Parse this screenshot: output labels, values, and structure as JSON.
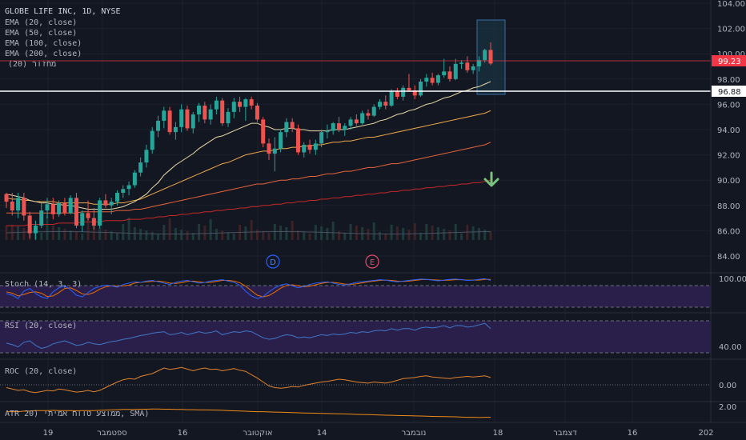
{
  "colors": {
    "bg": "#131722",
    "grid": "#1f2330",
    "up": "#26a69a",
    "down": "#ef5350",
    "text": "#b2b5be",
    "ema20": "#e8d9a6",
    "ema50": "#f0a94c",
    "ema100": "#e8643c",
    "ema200": "#c62828",
    "volume_ma": "#4a5262",
    "arrow": "#7bc47f",
    "stoch_k": "#2962ff",
    "stoch_d": "#ef6c00",
    "stoch_band": "#2a1f4a",
    "rsi": "#3f78c9",
    "rsi_band": "#2a1f4a",
    "roc": "#e0822e",
    "atr": "#ef8a17",
    "price_tag": "#f23645",
    "level_tag": "#ffffff"
  },
  "header": {
    "symbol_line": "GLOBE LIFE INC, 1D, NYSE",
    "indicators": [
      "EMA (20, close)",
      "EMA (50, close)",
      "EMA (100, close)",
      "EMA (200, close)",
      "מחזור (20)"
    ]
  },
  "price_axis": {
    "ticks": [
      "104.00",
      "102.00",
      "100.00",
      "98.00",
      "96.00",
      "94.00",
      "92.00",
      "90.00",
      "88.00",
      "86.00",
      "84.00"
    ],
    "current_price": "99.23",
    "support_level": "96.88"
  },
  "event_markers": [
    {
      "label": "D"
    },
    {
      "label": "E"
    }
  ],
  "time_axis": {
    "labels": [
      "19",
      "ספטמבר",
      "16",
      "אוקטובר",
      "14",
      "נובמבר",
      "18",
      "דצמבר",
      "16",
      "202"
    ]
  },
  "panes": {
    "stoch": {
      "title": "Stoch (14, 3, 3)",
      "tick": "100.00"
    },
    "rsi": {
      "title": "RSI (20, close)",
      "tick": "40.00"
    },
    "roc": {
      "title": "ROC (20, close)",
      "tick": "0.00"
    },
    "atr": {
      "title": "ATR 20) ממוצע טווח אמיתי, SMA)",
      "tick": "2.00"
    }
  },
  "chart_data": {
    "type": "candlestick",
    "title": "GLOBE LIFE INC, 1D, NYSE",
    "ylim": [
      83,
      105
    ],
    "candles": [
      [
        88.9,
        89.0,
        87.8,
        88.3
      ],
      [
        88.3,
        89.0,
        87.2,
        87.6
      ],
      [
        87.6,
        89.0,
        87.0,
        88.6
      ],
      [
        88.6,
        89.0,
        86.8,
        87.2
      ],
      [
        87.2,
        87.5,
        85.4,
        85.8
      ],
      [
        85.8,
        86.8,
        85.3,
        86.4
      ],
      [
        86.4,
        88.2,
        86.2,
        87.6
      ],
      [
        87.6,
        88.6,
        87.0,
        88.1
      ],
      [
        88.1,
        88.6,
        86.9,
        87.3
      ],
      [
        87.3,
        88.4,
        87.1,
        88.2
      ],
      [
        88.2,
        88.6,
        87.2,
        87.4
      ],
      [
        87.4,
        88.8,
        87.3,
        88.6
      ],
      [
        88.6,
        89.0,
        86.2,
        86.4
      ],
      [
        86.4,
        87.6,
        85.9,
        87.4
      ],
      [
        87.4,
        88.4,
        86.8,
        87.0
      ],
      [
        87.0,
        87.8,
        86.1,
        86.4
      ],
      [
        86.4,
        88.6,
        86.2,
        88.4
      ],
      [
        88.4,
        88.9,
        87.8,
        88.0
      ],
      [
        88.0,
        88.6,
        87.3,
        88.3
      ],
      [
        88.3,
        89.2,
        88.0,
        89.0
      ],
      [
        89.0,
        89.6,
        88.6,
        89.3
      ],
      [
        89.3,
        89.9,
        88.8,
        89.6
      ],
      [
        89.6,
        90.8,
        89.4,
        90.6
      ],
      [
        90.6,
        91.8,
        90.3,
        91.4
      ],
      [
        91.4,
        92.8,
        91.0,
        92.4
      ],
      [
        92.4,
        94.2,
        92.1,
        93.9
      ],
      [
        93.9,
        95.1,
        93.4,
        94.7
      ],
      [
        94.7,
        95.8,
        94.1,
        95.5
      ],
      [
        95.5,
        95.8,
        93.6,
        93.8
      ],
      [
        93.8,
        94.6,
        93.2,
        94.2
      ],
      [
        94.2,
        96.0,
        93.8,
        95.6
      ],
      [
        95.6,
        95.9,
        93.9,
        94.1
      ],
      [
        94.1,
        95.4,
        93.7,
        95.2
      ],
      [
        95.2,
        96.1,
        94.6,
        95.9
      ],
      [
        95.9,
        96.2,
        94.5,
        94.8
      ],
      [
        94.8,
        96.0,
        94.4,
        95.6
      ],
      [
        95.6,
        96.6,
        95.2,
        96.3
      ],
      [
        96.3,
        96.5,
        94.3,
        94.5
      ],
      [
        94.5,
        95.7,
        94.2,
        95.4
      ],
      [
        95.4,
        96.5,
        94.9,
        96.2
      ],
      [
        96.2,
        96.6,
        95.4,
        95.8
      ],
      [
        95.8,
        96.5,
        94.7,
        96.4
      ],
      [
        96.4,
        96.6,
        95.6,
        95.9
      ],
      [
        95.9,
        96.1,
        94.6,
        94.8
      ],
      [
        94.8,
        95.0,
        92.6,
        92.9
      ],
      [
        92.9,
        93.3,
        91.6,
        92.1
      ],
      [
        92.1,
        93.4,
        90.7,
        92.5
      ],
      [
        92.5,
        94.0,
        92.2,
        93.8
      ],
      [
        93.8,
        94.9,
        93.4,
        94.6
      ],
      [
        94.6,
        94.9,
        93.8,
        94.1
      ],
      [
        94.1,
        94.4,
        92.0,
        92.2
      ],
      [
        92.2,
        93.0,
        91.8,
        92.8
      ],
      [
        92.8,
        93.2,
        92.1,
        92.4
      ],
      [
        92.4,
        93.2,
        92.0,
        92.9
      ],
      [
        92.9,
        94.0,
        92.6,
        93.8
      ],
      [
        93.8,
        94.4,
        93.3,
        93.9
      ],
      [
        93.9,
        94.6,
        93.6,
        94.5
      ],
      [
        94.5,
        95.0,
        93.8,
        94.0
      ],
      [
        94.0,
        94.5,
        93.5,
        94.3
      ],
      [
        94.3,
        95.0,
        94.0,
        94.8
      ],
      [
        94.8,
        95.2,
        94.3,
        94.5
      ],
      [
        94.5,
        95.5,
        94.4,
        95.3
      ],
      [
        95.3,
        95.6,
        94.8,
        95.1
      ],
      [
        95.1,
        96.0,
        95.0,
        95.8
      ],
      [
        95.8,
        96.4,
        95.6,
        96.2
      ],
      [
        96.2,
        96.7,
        95.6,
        95.9
      ],
      [
        95.9,
        97.2,
        95.8,
        97.0
      ],
      [
        97.0,
        97.3,
        96.4,
        96.6
      ],
      [
        96.6,
        97.5,
        96.3,
        97.3
      ],
      [
        97.3,
        98.4,
        97.0,
        97.1
      ],
      [
        97.1,
        97.5,
        96.4,
        96.7
      ],
      [
        96.7,
        98.0,
        96.6,
        97.8
      ],
      [
        97.8,
        98.4,
        97.4,
        98.1
      ],
      [
        98.1,
        98.5,
        97.5,
        97.7
      ],
      [
        97.7,
        98.4,
        97.5,
        98.3
      ],
      [
        98.3,
        99.6,
        98.1,
        98.6
      ],
      [
        98.6,
        99.0,
        97.8,
        98.0
      ],
      [
        98.0,
        99.6,
        97.9,
        99.2
      ],
      [
        99.2,
        99.5,
        98.8,
        99.3
      ],
      [
        99.3,
        99.8,
        98.5,
        98.7
      ],
      [
        98.7,
        99.2,
        98.4,
        99.0
      ],
      [
        99.0,
        99.8,
        98.6,
        99.5
      ],
      [
        99.5,
        100.4,
        99.3,
        100.3
      ],
      [
        100.3,
        100.9,
        99.1,
        99.23
      ]
    ],
    "ema20": [
      88.9,
      88.8,
      88.7,
      88.6,
      88.4,
      88.3,
      88.2,
      88.2,
      88.1,
      88.1,
      88.0,
      88.0,
      87.9,
      87.8,
      87.7,
      87.7,
      87.7,
      87.7,
      87.7,
      87.8,
      87.9,
      88.1,
      88.3,
      88.6,
      88.9,
      89.4,
      89.8,
      90.4,
      90.8,
      91.2,
      91.5,
      91.8,
      92.1,
      92.5,
      92.8,
      93.1,
      93.4,
      93.5,
      93.7,
      93.9,
      94.1,
      94.3,
      94.5,
      94.5,
      94.3,
      94.2,
      94.0,
      94.0,
      94.1,
      94.1,
      94.0,
      94.0,
      93.9,
      93.9,
      93.9,
      93.9,
      94.0,
      94.0,
      94.0,
      94.1,
      94.2,
      94.3,
      94.4,
      94.5,
      94.7,
      94.8,
      95.0,
      95.2,
      95.3,
      95.5,
      95.6,
      95.8,
      96.0,
      96.1,
      96.3,
      96.5,
      96.6,
      96.8,
      97.0,
      97.1,
      97.3,
      97.4,
      97.6,
      97.8
    ],
    "ema50": [
      88.6,
      88.5,
      88.5,
      88.4,
      88.4,
      88.3,
      88.3,
      88.3,
      88.3,
      88.2,
      88.2,
      88.2,
      88.2,
      88.2,
      88.2,
      88.1,
      88.1,
      88.1,
      88.1,
      88.2,
      88.2,
      88.3,
      88.4,
      88.5,
      88.7,
      88.9,
      89.1,
      89.3,
      89.5,
      89.7,
      89.9,
      90.1,
      90.3,
      90.5,
      90.7,
      90.9,
      91.1,
      91.3,
      91.4,
      91.6,
      91.8,
      92.0,
      92.1,
      92.2,
      92.3,
      92.3,
      92.4,
      92.5,
      92.5,
      92.6,
      92.6,
      92.7,
      92.7,
      92.8,
      92.8,
      92.9,
      93.0,
      93.0,
      93.1,
      93.1,
      93.2,
      93.3,
      93.4,
      93.4,
      93.5,
      93.6,
      93.7,
      93.8,
      93.9,
      94.0,
      94.1,
      94.2,
      94.3,
      94.4,
      94.5,
      94.6,
      94.7,
      94.8,
      94.9,
      95.0,
      95.1,
      95.2,
      95.3,
      95.5
    ],
    "ema100": [
      87.4,
      87.4,
      87.4,
      87.4,
      87.4,
      87.4,
      87.4,
      87.4,
      87.4,
      87.4,
      87.4,
      87.4,
      87.4,
      87.5,
      87.5,
      87.5,
      87.5,
      87.5,
      87.5,
      87.6,
      87.6,
      87.6,
      87.7,
      87.7,
      87.8,
      87.9,
      88.0,
      88.1,
      88.2,
      88.3,
      88.4,
      88.5,
      88.6,
      88.7,
      88.8,
      88.9,
      89.0,
      89.1,
      89.2,
      89.3,
      89.4,
      89.5,
      89.6,
      89.7,
      89.7,
      89.8,
      89.9,
      90.0,
      90.0,
      90.1,
      90.1,
      90.2,
      90.3,
      90.3,
      90.4,
      90.5,
      90.5,
      90.6,
      90.7,
      90.7,
      90.8,
      90.9,
      91.0,
      91.0,
      91.1,
      91.2,
      91.3,
      91.3,
      91.4,
      91.5,
      91.6,
      91.7,
      91.8,
      91.9,
      92.0,
      92.1,
      92.2,
      92.3,
      92.4,
      92.5,
      92.6,
      92.7,
      92.8,
      93.0
    ],
    "ema200": [
      86.4,
      86.4,
      86.4,
      86.4,
      86.5,
      86.5,
      86.5,
      86.5,
      86.5,
      86.6,
      86.6,
      86.6,
      86.6,
      86.7,
      86.7,
      86.7,
      86.7,
      86.8,
      86.8,
      86.8,
      86.8,
      86.9,
      86.9,
      86.9,
      87.0,
      87.0,
      87.1,
      87.1,
      87.2,
      87.2,
      87.3,
      87.3,
      87.4,
      87.4,
      87.5,
      87.5,
      87.6,
      87.6,
      87.7,
      87.7,
      87.8,
      87.8,
      87.9,
      87.9,
      88.0,
      88.0,
      88.1,
      88.1,
      88.2,
      88.2,
      88.3,
      88.3,
      88.4,
      88.4,
      88.5,
      88.5,
      88.6,
      88.6,
      88.7,
      88.7,
      88.8,
      88.8,
      88.9,
      88.9,
      89.0,
      89.0,
      89.1,
      89.1,
      89.2,
      89.2,
      89.3,
      89.3,
      89.4,
      89.4,
      89.5,
      89.5,
      89.6,
      89.6,
      89.7,
      89.7,
      89.8,
      89.8,
      89.9,
      90.0
    ],
    "stoch_k": [
      55,
      50,
      40,
      62,
      70,
      55,
      45,
      40,
      60,
      72,
      78,
      66,
      50,
      45,
      58,
      70,
      76,
      80,
      78,
      74,
      82,
      86,
      90,
      88,
      92,
      94,
      90,
      86,
      82,
      88,
      92,
      94,
      90,
      86,
      88,
      92,
      94,
      96,
      92,
      88,
      80,
      62,
      48,
      40,
      46,
      60,
      72,
      80,
      84,
      78,
      72,
      76,
      82,
      86,
      88,
      90,
      86,
      82,
      80,
      84,
      88,
      90,
      92,
      94,
      96,
      95,
      92,
      90,
      92,
      94,
      96,
      98,
      97,
      95,
      93,
      95,
      97,
      98,
      96,
      94,
      95,
      97,
      99,
      94
    ],
    "stoch_d": [
      60,
      56,
      48,
      52,
      58,
      60,
      56,
      46,
      48,
      58,
      70,
      72,
      64,
      54,
      52,
      58,
      68,
      75,
      78,
      77,
      78,
      80,
      86,
      88,
      90,
      91,
      92,
      90,
      86,
      85,
      87,
      91,
      92,
      90,
      88,
      88,
      91,
      94,
      94,
      92,
      87,
      77,
      63,
      50,
      45,
      49,
      59,
      71,
      79,
      81,
      78,
      75,
      77,
      81,
      85,
      88,
      88,
      86,
      83,
      82,
      84,
      87,
      90,
      92,
      94,
      95,
      94,
      92,
      91,
      92,
      94,
      96,
      97,
      96,
      95,
      94,
      95,
      96,
      96,
      95,
      95,
      95,
      97,
      97
    ],
    "rsi": [
      47,
      45,
      42,
      48,
      50,
      44,
      40,
      42,
      46,
      48,
      50,
      47,
      44,
      45,
      48,
      46,
      45,
      47,
      49,
      50,
      52,
      53,
      55,
      57,
      58,
      60,
      61,
      62,
      58,
      59,
      61,
      58,
      60,
      62,
      60,
      61,
      63,
      58,
      60,
      62,
      61,
      63,
      62,
      58,
      54,
      52,
      53,
      56,
      58,
      57,
      54,
      55,
      54,
      56,
      58,
      57,
      59,
      58,
      59,
      61,
      60,
      62,
      61,
      63,
      64,
      63,
      66,
      64,
      66,
      66,
      64,
      67,
      68,
      67,
      68,
      70,
      67,
      70,
      70,
      68,
      69,
      71,
      73,
      66
    ],
    "roc": [
      -1.0,
      -1.5,
      -2.0,
      -1.8,
      -2.5,
      -2.8,
      -2.4,
      -2.0,
      -2.2,
      -1.5,
      -1.8,
      -2.2,
      -2.6,
      -2.4,
      -2.0,
      -2.5,
      -2.0,
      -1.0,
      0.0,
      1.0,
      1.8,
      2.2,
      2.0,
      3.0,
      3.5,
      4.0,
      5.0,
      6.0,
      5.5,
      5.8,
      6.2,
      5.6,
      5.0,
      5.6,
      6.0,
      5.5,
      5.6,
      5.0,
      5.4,
      5.8,
      5.2,
      4.8,
      3.6,
      2.4,
      1.0,
      -0.4,
      -1.0,
      -1.2,
      -1.0,
      -0.6,
      -0.8,
      -0.2,
      0.2,
      0.6,
      1.0,
      1.2,
      1.6,
      2.0,
      1.8,
      1.4,
      1.0,
      0.8,
      0.6,
      1.0,
      0.8,
      0.6,
      1.0,
      1.6,
      2.2,
      2.4,
      2.6,
      3.0,
      3.2,
      2.8,
      2.6,
      2.4,
      2.2,
      2.6,
      2.8,
      3.0,
      2.8,
      3.0,
      3.2,
      2.6
    ],
    "atr": [
      1.6,
      1.6,
      1.6,
      1.65,
      1.65,
      1.7,
      1.7,
      1.7,
      1.72,
      1.7,
      1.7,
      1.7,
      1.68,
      1.7,
      1.7,
      1.7,
      1.72,
      1.74,
      1.76,
      1.78,
      1.8,
      1.8,
      1.8,
      1.82,
      1.82,
      1.84,
      1.84,
      1.82,
      1.82,
      1.8,
      1.8,
      1.78,
      1.78,
      1.76,
      1.76,
      1.75,
      1.74,
      1.72,
      1.7,
      1.68,
      1.66,
      1.64,
      1.62,
      1.6,
      1.6,
      1.58,
      1.56,
      1.55,
      1.54,
      1.52,
      1.5,
      1.48,
      1.47,
      1.46,
      1.45,
      1.44,
      1.42,
      1.41,
      1.4,
      1.38,
      1.36,
      1.35,
      1.34,
      1.32,
      1.3,
      1.29,
      1.28,
      1.26,
      1.25,
      1.24,
      1.22,
      1.21,
      1.2,
      1.18,
      1.17,
      1.16,
      1.15,
      1.14,
      1.12,
      1.1,
      1.1,
      1.08,
      1.1,
      1.1
    ]
  }
}
